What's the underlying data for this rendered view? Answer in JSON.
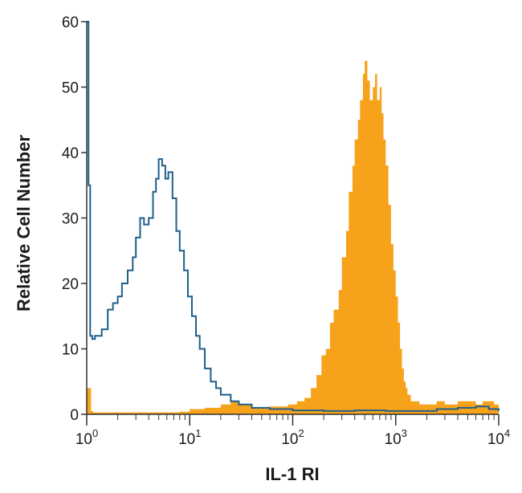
{
  "chart_data": {
    "type": "area",
    "title": "",
    "xlabel": "IL-1 RI",
    "ylabel": "Relative Cell Number",
    "x_scale": "log",
    "xlim": [
      1,
      10000
    ],
    "ylim": [
      0,
      60
    ],
    "x_ticks": [
      {
        "value": 1,
        "base": "10",
        "exp": "0"
      },
      {
        "value": 10,
        "base": "10",
        "exp": "1"
      },
      {
        "value": 100,
        "base": "10",
        "exp": "2"
      },
      {
        "value": 1000,
        "base": "10",
        "exp": "3"
      },
      {
        "value": 10000,
        "base": "10",
        "exp": "4"
      }
    ],
    "y_ticks": [
      {
        "value": 0,
        "label": "0"
      },
      {
        "value": 10,
        "label": "10"
      },
      {
        "value": 20,
        "label": "20"
      },
      {
        "value": 30,
        "label": "30"
      },
      {
        "value": 40,
        "label": "40"
      },
      {
        "value": 50,
        "label": "50"
      },
      {
        "value": 60,
        "label": "60"
      }
    ],
    "grid": false,
    "legend": "none",
    "series": [
      {
        "style": "filled",
        "color": "#f7a21b",
        "x": [
          1,
          1.06,
          1.1,
          1.15,
          1.5,
          3,
          8,
          10,
          14,
          20,
          25,
          30,
          40,
          60,
          90,
          110,
          130,
          150,
          170,
          190,
          210,
          230,
          250,
          280,
          300,
          330,
          350,
          380,
          400,
          430,
          450,
          480,
          500,
          530,
          560,
          600,
          630,
          660,
          700,
          730,
          760,
          800,
          850,
          900,
          950,
          1000,
          1050,
          1100,
          1150,
          1200,
          1250,
          1300,
          1400,
          1500,
          1700,
          2000,
          2500,
          3000,
          4000,
          5000,
          6000,
          7000,
          8000,
          9000,
          10000
        ],
        "y": [
          4,
          4,
          0.5,
          0.3,
          0.3,
          0.3,
          0.4,
          0.8,
          1,
          1.5,
          2,
          1.5,
          1,
          1.2,
          1.5,
          2,
          2.5,
          4,
          6,
          9,
          10,
          14,
          16,
          19,
          24,
          28,
          34,
          38,
          42,
          45,
          48,
          52,
          54,
          51,
          48,
          50,
          52,
          48,
          50,
          46,
          42,
          38,
          32,
          26,
          22,
          18,
          14,
          10,
          7,
          5,
          4,
          3,
          2,
          2,
          1.5,
          1.5,
          2,
          1.5,
          2,
          2,
          1.5,
          2,
          2,
          1.5,
          1
        ]
      },
      {
        "style": "outline",
        "color": "#1f5f8b",
        "x": [
          1,
          1.04,
          1.08,
          1.13,
          1.2,
          1.4,
          1.6,
          1.8,
          2,
          2.2,
          2.5,
          2.8,
          3,
          3.3,
          3.6,
          4,
          4.4,
          4.7,
          5,
          5.4,
          5.8,
          6.2,
          6.8,
          7.4,
          8,
          8.8,
          9.6,
          10.5,
          11.5,
          12.5,
          14,
          16,
          18,
          20,
          25,
          30,
          40,
          60,
          100,
          200,
          400,
          800,
          1500,
          2500,
          4000,
          6000,
          8000,
          10000
        ],
        "y": [
          60,
          35,
          12,
          11.5,
          12,
          13,
          16,
          17,
          18,
          20,
          22,
          24,
          27,
          30,
          29,
          30,
          34,
          36,
          39,
          38,
          36,
          37,
          33,
          28,
          25,
          22,
          18,
          15,
          12,
          10,
          7,
          5,
          4,
          3,
          2,
          1.5,
          1,
          0.8,
          0.6,
          0.5,
          0.6,
          0.5,
          0.5,
          0.8,
          1,
          1.2,
          0.8,
          0.5
        ]
      }
    ]
  }
}
